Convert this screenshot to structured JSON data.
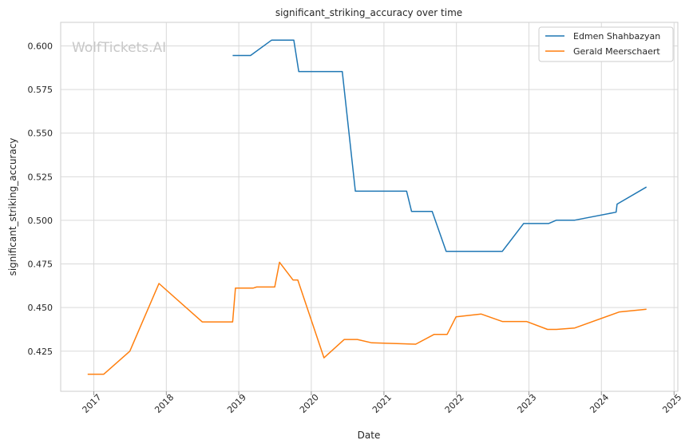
{
  "chart_data": {
    "type": "line",
    "title": "significant_striking_accuracy over time",
    "xlabel": "Date",
    "ylabel": "significant_striking_accuracy",
    "watermark": "WolfTickets.AI",
    "x_ticks": [
      "2017",
      "2018",
      "2019",
      "2020",
      "2021",
      "2022",
      "2023",
      "2024",
      "2025"
    ],
    "y_ticks": [
      "0.425",
      "0.450",
      "0.475",
      "0.500",
      "0.525",
      "0.550",
      "0.575",
      "0.600"
    ],
    "xlim": [
      "2016-07-18",
      "2025-01-20"
    ],
    "ylim": [
      0.402,
      0.6135
    ],
    "grid": true,
    "legend_position": "top-right",
    "series": [
      {
        "name": "Edmen Shahbazyan",
        "color": "#1f77b4",
        "points": [
          [
            "2018-12-01",
            0.5945
          ],
          [
            "2019-03-01",
            0.5945
          ],
          [
            "2019-06-15",
            0.6033
          ],
          [
            "2019-10-05",
            0.6033
          ],
          [
            "2019-10-30",
            0.5853
          ],
          [
            "2020-06-05",
            0.5853
          ],
          [
            "2020-08-10",
            0.5167
          ],
          [
            "2021-04-25",
            0.5167
          ],
          [
            "2021-05-20",
            0.5051
          ],
          [
            "2021-09-01",
            0.5051
          ],
          [
            "2021-11-10",
            0.4822
          ],
          [
            "2022-08-20",
            0.4822
          ],
          [
            "2022-12-05",
            0.4982
          ],
          [
            "2023-04-10",
            0.4982
          ],
          [
            "2023-05-20",
            0.5001
          ],
          [
            "2023-08-20",
            0.5001
          ],
          [
            "2024-03-15",
            0.5047
          ],
          [
            "2024-03-20",
            0.5093
          ],
          [
            "2024-08-15",
            0.5191
          ]
        ]
      },
      {
        "name": "Gerald Meerschaert",
        "color": "#ff7f0e",
        "points": [
          [
            "2016-12-01",
            0.4118
          ],
          [
            "2017-02-20",
            0.4118
          ],
          [
            "2017-07-01",
            0.425
          ],
          [
            "2017-11-25",
            0.4638
          ],
          [
            "2018-07-01",
            0.4418
          ],
          [
            "2018-12-01",
            0.4418
          ],
          [
            "2018-12-15",
            0.4612
          ],
          [
            "2019-03-15",
            0.4612
          ],
          [
            "2019-04-01",
            0.4618
          ],
          [
            "2019-07-01",
            0.4618
          ],
          [
            "2019-07-25",
            0.476
          ],
          [
            "2019-10-01",
            0.4658
          ],
          [
            "2019-10-25",
            0.4658
          ],
          [
            "2020-03-05",
            0.4212
          ],
          [
            "2020-06-15",
            0.4317
          ],
          [
            "2020-08-20",
            0.4317
          ],
          [
            "2020-11-01",
            0.4298
          ],
          [
            "2021-06-10",
            0.429
          ],
          [
            "2021-09-10",
            0.4346
          ],
          [
            "2021-11-15",
            0.4346
          ],
          [
            "2021-12-30",
            0.4447
          ],
          [
            "2022-05-05",
            0.4463
          ],
          [
            "2022-08-20",
            0.442
          ],
          [
            "2022-12-20",
            0.442
          ],
          [
            "2023-04-05",
            0.4375
          ],
          [
            "2023-05-20",
            0.4375
          ],
          [
            "2023-08-20",
            0.4383
          ],
          [
            "2024-04-01",
            0.4475
          ],
          [
            "2024-08-15",
            0.449
          ]
        ]
      }
    ]
  }
}
